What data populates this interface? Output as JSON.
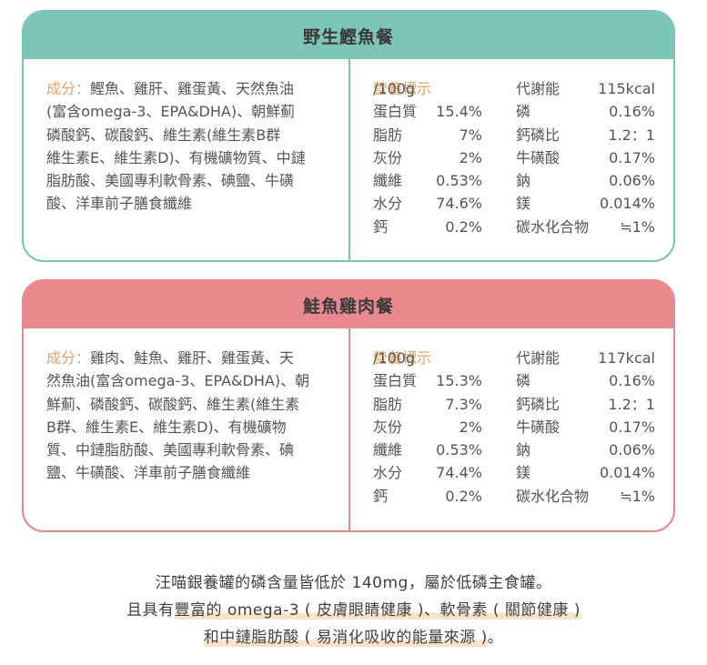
{
  "cards": [
    {
      "title": "野生鰹魚餐",
      "ingredients_label": "成分：",
      "ingredients_lines": [
        "鰹魚、雞肝、雞蛋黃、天然魚油",
        "(富含omega-3、EPA&DHA)、朝鮮薊",
        "磷酸鈣、碳酸鈣、維生素(維生素B群",
        "維生素E、維生素D)、有機礦物質、中鏈",
        "脂肪酸、美國專利軟骨素、碘鹽、牛磺",
        "酸、洋車前子膳食纖維"
      ],
      "nutrition_label": "營養標示",
      "nutrition_unit": "/100g",
      "energy_label": "代謝能",
      "energy_value": "115kcal",
      "rows": [
        {
          "n1": "蛋白質",
          "v1": "15.4%",
          "n2": "磷",
          "v2": "0.16%"
        },
        {
          "n1": "脂肪",
          "v1": "7%",
          "n2": "鈣磷比",
          "v2": "1.2：1"
        },
        {
          "n1": "灰份",
          "v1": "2%",
          "n2": "牛磺酸",
          "v2": "0.17%"
        },
        {
          "n1": "纖維",
          "v1": "0.53%",
          "n2": "鈉",
          "v2": "0.06%"
        },
        {
          "n1": "水分",
          "v1": "74.6%",
          "n2": "鎂",
          "v2": "0.014%"
        },
        {
          "n1": "鈣",
          "v1": "0.2%",
          "n2": "碳水化合物",
          "v2": "≒1%"
        }
      ]
    },
    {
      "title": "鮭魚雞肉餐",
      "ingredients_label": "成分：",
      "ingredients_lines": [
        "雞肉、鮭魚、雞肝、雞蛋黃、天",
        "然魚油(富含omega-3、EPA&DHA)、朝",
        "鮮薊、磷酸鈣、碳酸鈣、維生素(維生素",
        "B群、維生素E、維生素D)、有機礦物",
        "質、中鏈脂肪酸、美國專利軟骨素、碘",
        "鹽、牛磺酸、洋車前子膳食纖維"
      ],
      "nutrition_label": "營養標示",
      "nutrition_unit": "/100g",
      "energy_label": "代謝能",
      "energy_value": "117kcal",
      "rows": [
        {
          "n1": "蛋白質",
          "v1": "15.3%",
          "n2": "磷",
          "v2": "0.16%"
        },
        {
          "n1": "脂肪",
          "v1": "7.3%",
          "n2": "鈣磷比",
          "v2": "1.2：1"
        },
        {
          "n1": "灰份",
          "v1": "2%",
          "n2": "牛磺酸",
          "v2": "0.17%"
        },
        {
          "n1": "纖維",
          "v1": "0.53%",
          "n2": "鈉",
          "v2": "0.06%"
        },
        {
          "n1": "水分",
          "v1": "74.4%",
          "n2": "鎂",
          "v2": "0.014%"
        },
        {
          "n1": "鈣",
          "v1": "0.2%",
          "n2": "碳水化合物",
          "v2": "≒1%"
        }
      ]
    }
  ],
  "footer": {
    "line1": "汪喵銀養罐的磷含量皆低於 140mg，屬於低磷主食罐。",
    "line2_prefix": "且具有",
    "line2_highlight": "豐富的 omega-3 ( 皮膚眼睛健康 )、軟骨素 ( 關節健康 )",
    "line3_highlight": "和中鏈脂肪酸 ( 易消化吸收的能量來源 )",
    "line3_suffix": "。"
  },
  "colors": {
    "card1_accent": "#7dc6b7",
    "card2_accent": "#e9898e",
    "label_orange": "#e0a46a",
    "highlight": "#fbe2c9"
  }
}
